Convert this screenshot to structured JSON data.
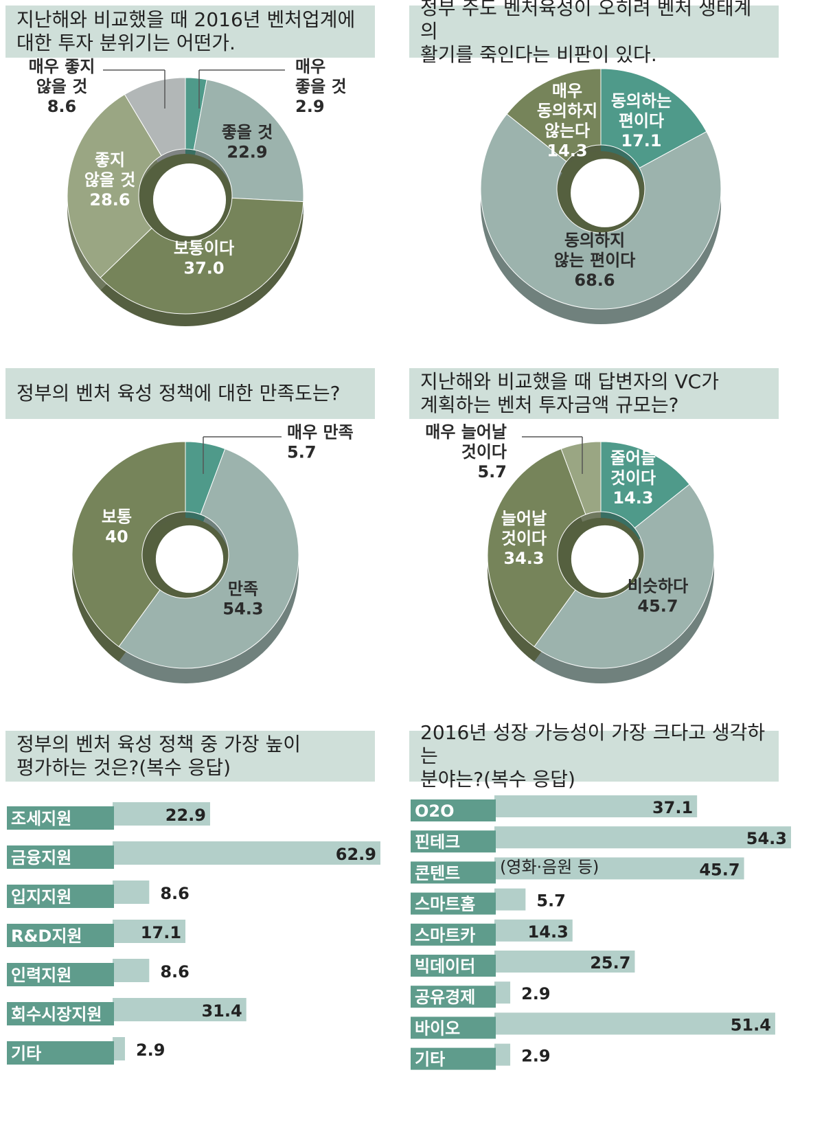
{
  "colors": {
    "question_bg": "#cfdfd9",
    "olive": "#76845a",
    "olive_dark": "#5b6843",
    "sage": "#9aa683",
    "blue_gray": "#9cb3ad",
    "blue_gray_dark": "#6f8581",
    "light_gray": "#b2b7b7",
    "teal": "#4f9a8a",
    "bar_label_bg": "#5f9c8c",
    "bar_fill": "#b3cfc9"
  },
  "chart_data": [
    {
      "type": "pie",
      "title": "지난해와 비교했을 때 2016년 벤처업계에\n대한 투자 분위기는 어떤가.",
      "slices": [
        {
          "label": "매우 좋을 것",
          "value": 2.9,
          "color": "#4f9a8a"
        },
        {
          "label": "좋을 것",
          "value": 22.9,
          "color": "#9cb3ad"
        },
        {
          "label": "보통이다",
          "value": 37.0,
          "color": "#76845a"
        },
        {
          "label": "좋지 않을 것",
          "value": 28.6,
          "color": "#9aa683"
        },
        {
          "label": "매우 좋지 않을 것",
          "value": 8.6,
          "color": "#b2b7b7"
        }
      ]
    },
    {
      "type": "pie",
      "title": "정부 주도 벤처육성이 오히려 벤처 생태계의\n활기를 죽인다는 비판이 있다.",
      "slices": [
        {
          "label": "동의하는 편이다",
          "value": 17.1,
          "color": "#4f9a8a"
        },
        {
          "label": "동의하지 않는 편이다",
          "value": 68.6,
          "color": "#9cb3ad"
        },
        {
          "label": "매우 동의하지 않는다",
          "value": 14.3,
          "color": "#76845a"
        }
      ]
    },
    {
      "type": "pie",
      "title": "정부의 벤처 육성 정책에 대한 만족도는?",
      "slices": [
        {
          "label": "매우 만족",
          "value": 5.7,
          "color": "#4f9a8a"
        },
        {
          "label": "만족",
          "value": 54.3,
          "color": "#9cb3ad"
        },
        {
          "label": "보통",
          "value": 40,
          "color": "#76845a"
        }
      ]
    },
    {
      "type": "pie",
      "title": "지난해와 비교했을 때 답변자의 VC가\n계획하는 벤처 투자금액 규모는?",
      "slices": [
        {
          "label": "줄어들 것이다",
          "value": 14.3,
          "color": "#4f9a8a"
        },
        {
          "label": "비슷하다",
          "value": 45.7,
          "color": "#9cb3ad"
        },
        {
          "label": "늘어날 것이다",
          "value": 34.3,
          "color": "#76845a"
        },
        {
          "label": "매우 늘어날 것이다",
          "value": 5.7,
          "color": "#9aa683"
        }
      ]
    },
    {
      "type": "bar",
      "orientation": "horizontal",
      "title": "정부의 벤처 육성 정책 중 가장 높이\n평가하는 것은?(복수 응답)",
      "categories": [
        "조세지원",
        "금융지원",
        "입지지원",
        "R&D지원",
        "인력지원",
        "회수시장지원",
        "기타"
      ],
      "values": [
        22.9,
        62.9,
        8.6,
        17.1,
        8.6,
        31.4,
        2.9
      ]
    },
    {
      "type": "bar",
      "orientation": "horizontal",
      "title": "2016년 성장 가능성이 가장 크다고 생각하는\n분야는?(복수 응답)",
      "categories": [
        "O2O",
        "핀테크",
        "콘텐트",
        "스마트홈",
        "스마트카",
        "빅데이터",
        "공유경제",
        "바이오",
        "기타"
      ],
      "values": [
        37.1,
        54.3,
        45.7,
        5.7,
        14.3,
        25.7,
        2.9,
        51.4,
        2.9
      ],
      "annotations": [
        {
          "category": "콘텐트",
          "text": "(영화·음원 등)"
        }
      ]
    }
  ],
  "donut_labels": {
    "d1": {
      "very_good": "매우\n좋을 것\n2.9",
      "good": "좋을 것\n22.9",
      "normal": "보통이다\n37.0",
      "not_good": "좋지\n않을 것\n28.6",
      "very_not_good": "매우 좋지\n않을 것\n8.6"
    },
    "d2": {
      "agree": "동의하는\n편이다\n17.1",
      "disagree": "동의하지\n않는 편이다\n68.6",
      "strongly_disagree": "매우\n동의하지\n않는다\n14.3"
    },
    "d3": {
      "very_satisfied": "매우 만족\n5.7",
      "satisfied": "만족\n54.3",
      "normal": "보통\n40"
    },
    "d4": {
      "decrease": "줄어들\n것이다\n14.3",
      "similar": "비슷하다\n45.7",
      "increase": "늘어날\n것이다\n34.3",
      "strong_increase": "매우 늘어날\n것이다\n5.7"
    }
  },
  "bar_value_labels": {
    "b1": [
      "22.9",
      "62.9",
      "8.6",
      "17.1",
      "8.6",
      "31.4",
      "2.9"
    ],
    "b2": [
      "37.1",
      "54.3",
      "45.7",
      "5.7",
      "14.3",
      "25.7",
      "2.9",
      "51.4",
      "2.9"
    ]
  }
}
